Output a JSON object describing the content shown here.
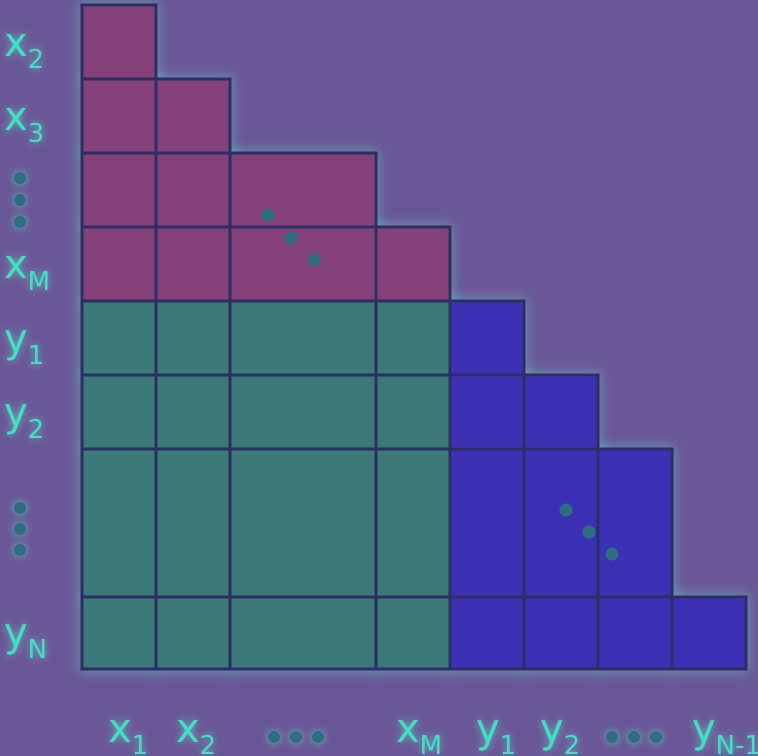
{
  "colors": {
    "background": "#6a5797",
    "block_xx": "#84417a",
    "block_yx": "#3c7a7a",
    "block_yy": "#3c30b4",
    "grid_line": "#2c2f63",
    "label": "#3fe0c0",
    "glow": "#63d8c8"
  },
  "row_labels": [
    {
      "base": "x",
      "sub": "2"
    },
    {
      "base": "x",
      "sub": "3"
    },
    {
      "base": "",
      "sub": "",
      "ellipsis": true
    },
    {
      "base": "x",
      "sub": "M"
    },
    {
      "base": "y",
      "sub": "1"
    },
    {
      "base": "y",
      "sub": "2"
    },
    {
      "base": "",
      "sub": "",
      "ellipsis": true
    },
    {
      "base": "y",
      "sub": "N"
    }
  ],
  "col_labels": [
    {
      "base": "x",
      "sub": "1"
    },
    {
      "base": "x",
      "sub": "2"
    },
    {
      "base": "",
      "sub": "",
      "ellipsis": true
    },
    {
      "base": "x",
      "sub": "M"
    },
    {
      "base": "y",
      "sub": "1"
    },
    {
      "base": "y",
      "sub": "2"
    },
    {
      "base": "",
      "sub": "",
      "ellipsis": true
    },
    {
      "base": "y",
      "sub": "N-1"
    }
  ]
}
